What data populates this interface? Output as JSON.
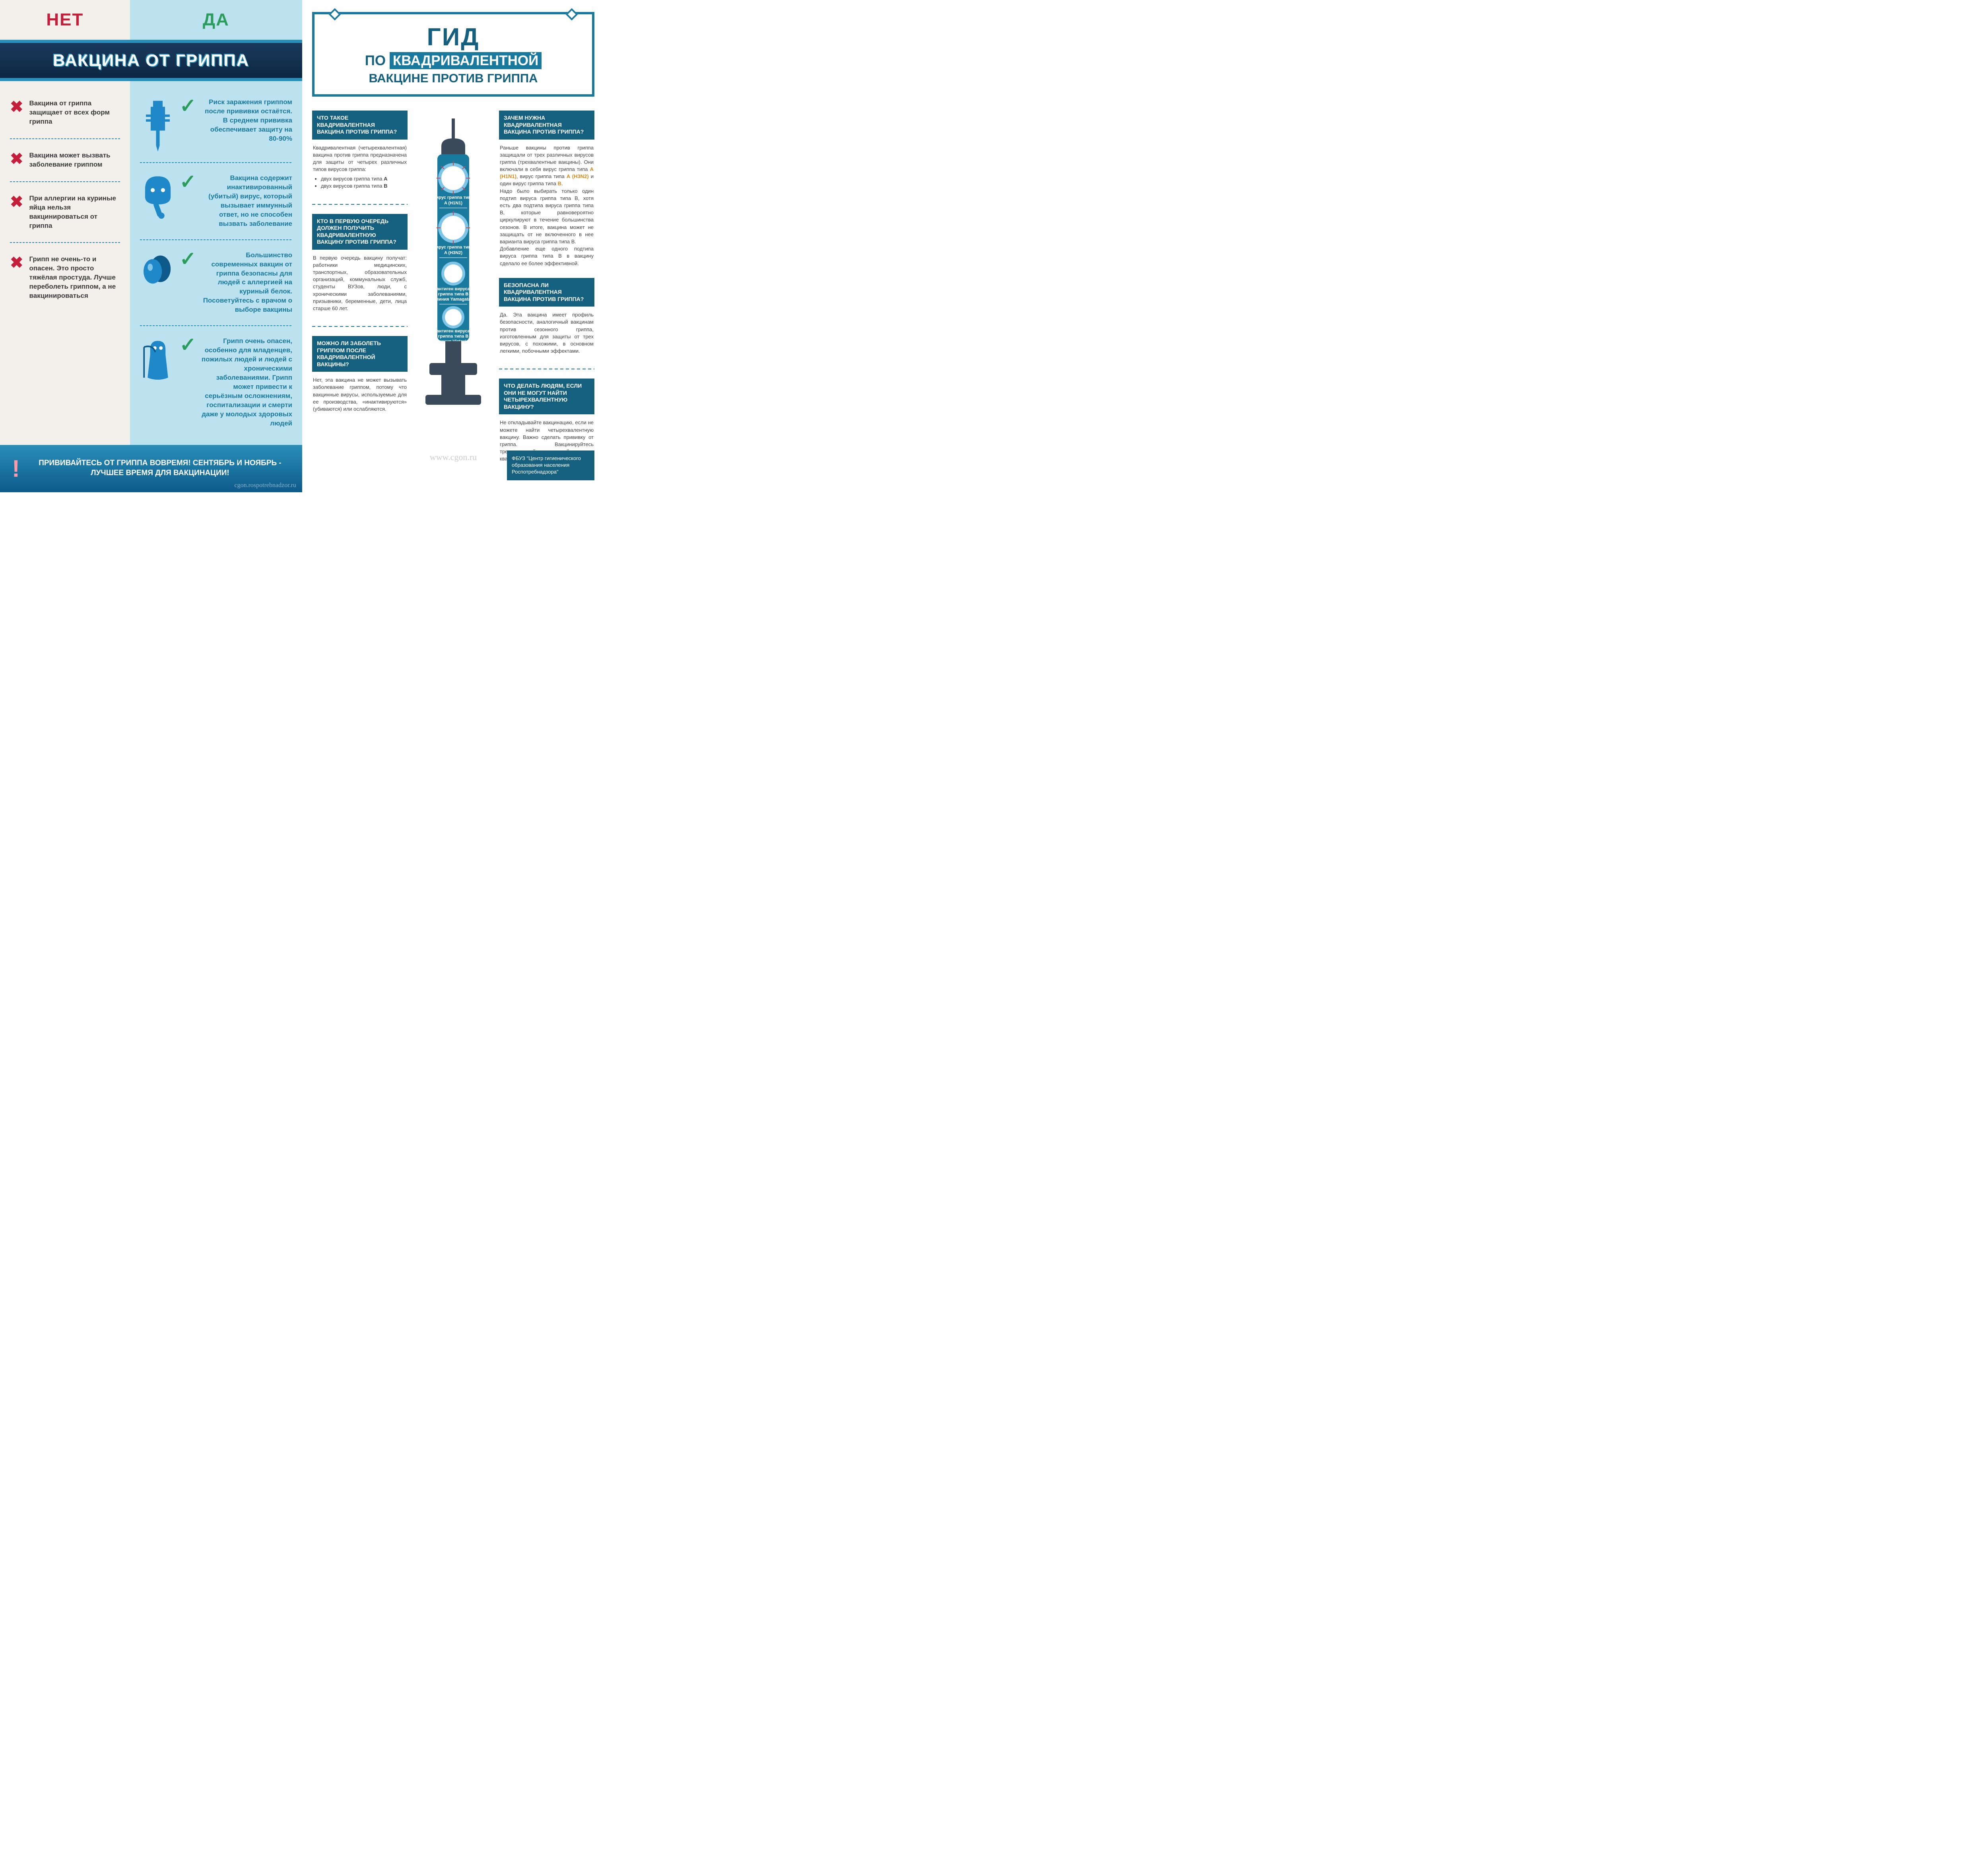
{
  "colors": {
    "red": "#c41e3a",
    "green": "#2a9d5c",
    "teal": "#1a7a9e",
    "darkTeal": "#14607e",
    "navy": "#0d2744",
    "leftNoBg": "#f3f0eb",
    "leftYesBg": "#bce2ef",
    "iconBlue": "#1e88c9",
    "excl": "#d05a6e",
    "orange": "#d68a1a"
  },
  "left": {
    "header": {
      "no": "НЕТ",
      "yes": "ДА"
    },
    "title": "ВАКЦИНА ОТ ГРИППА",
    "myths": [
      {
        "no": "Вакцина от гриппа защищает от всех форм гриппа",
        "yes": "Риск заражения гриппом после прививки остаётся. В среднем прививка обеспечивает защиту на 80-90%",
        "icon": "syringe"
      },
      {
        "no": "Вакцина может вызвать заболевание гриппом",
        "yes": "Вакцина содержит инактивированный (убитый) вирус, который вызывает иммунный ответ, но не способен вызвать заболевание",
        "icon": "face"
      },
      {
        "no": "При аллергии на куриные яйца нельзя вакцинироваться от гриппа",
        "yes": "Большинство современных вакцин от гриппа безопасны для людей с аллергией на куриный белок. Посоветуйтесь с врачом о выборе вакцины",
        "icon": "eggs"
      },
      {
        "no": "Грипп не очень-то и опасен. Это просто тяжёлая простуда. Лучше переболеть гриппом, а не вакцинироваться",
        "yes": "Грипп очень опасен, особенно для младенцев, пожилых людей и людей с хроническими заболеваниями. Грипп может привести к серьёзным осложнениям, госпитализации и смерти даже у молодых здоровых людей",
        "icon": "reaper"
      }
    ],
    "footer": {
      "excl": "!",
      "text": "ПРИВИВАЙТЕСЬ ОТ ГРИППА ВОВРЕМЯ! СЕНТЯБРЬ И НОЯБРЬ - ЛУЧШЕЕ ВРЕМЯ ДЛЯ ВАКЦИНАЦИИ!",
      "watermark": "cgon.rospotrebnadzor.ru"
    }
  },
  "right": {
    "title": {
      "l1": "ГИД",
      "l2a": "ПО ",
      "l2b": "КВАДРИВАЛЕНТНОЙ",
      "l3": "ВАКЦИНЕ ПРОТИВ ГРИППА"
    },
    "colA": [
      {
        "q": "ЧТО ТАКОЕ КВАДРИВАЛЕНТНАЯ ВАКЦИНА ПРОТИВ ГРИППА?",
        "a": "Квадривалентная (четырехвалентная) вакцина против гриппа предназначена для защиты от четырех различных типов вирусов гриппа:",
        "list": [
          "двух вирусов гриппа типа A",
          "двух вирусов гриппа типа B"
        ]
      },
      {
        "q": "КТО В ПЕРВУЮ ОЧЕРЕДЬ ДОЛЖЕН ПОЛУЧИТЬ КВАДРИВАЛЕНТНУЮ ВАКЦИНУ ПРОТИВ ГРИППА?",
        "a": "В первую очередь вакцину получат: работники медицинских, транспортных, образовательных организаций, коммунальных служб, студенты ВУЗов, люди, с хроническими заболеваниями, призывники, беременные, дети, лица старше 60 лет."
      },
      {
        "q": "МОЖНО ЛИ ЗАБОЛЕТЬ ГРИППОМ ПОСЛЕ КВАДРИВАЛЕНТНОЙ ВАКЦИНЫ?",
        "a": "Нет, эта вакцина не может вызывать заболевание гриппом, потому что вакцинные вирусы, используемые для ее производства, «инактивируются» (убиваются) или ослабляются."
      }
    ],
    "colC": [
      {
        "q": "ЗАЧЕМ НУЖНА КВАДРИВАЛЕНТНАЯ ВАКЦИНА ПРОТИВ ГРИППА?",
        "a_html": "Раньше вакцины против гриппа защищали от трех различных вирусов гриппа (трехвалентные вакцины). Они включали в себя вирус гриппа типа <b style='color:#d68a1a'>A (H1N1)</b>, вирус гриппа типа <b style='color:#d68a1a'>A (H3N2)</b> и один вирус гриппа типа <b style='color:#d68a1a'>B</b>.<br>Надо было выбирать только один подтип вируса гриппа типа B, хотя есть два подтипа вируса гриппа типа B, которые равновероятно циркулируют в течение большинства сезонов. В итоге, вакцина может не защищать от не включенного в нее варианта вируса гриппа типа B.<br>Добавление еще одного подтипа вируса гриппа типа B в вакцину сделало ее более эффективной."
      },
      {
        "q": "БЕЗОПАСНА ЛИ КВАДРИВАЛЕНТНАЯ ВАКЦИНА ПРОТИВ ГРИППА?",
        "a": "Да. Эта вакцина имеет профиль безопасности, аналогичный вакцинам против сезонного гриппа, изготовленным для защиты от трех вирусов, с похожими, в основном легкими, побочными эффектами."
      },
      {
        "q": "ЧТО ДЕЛАТЬ ЛЮДЯМ, ЕСЛИ ОНИ НЕ МОГУТ НАЙТИ ЧЕТЫРЕХВАЛЕНТНУЮ ВАКЦИНУ?",
        "a": "Не откладывайте вакцинацию, если не можете найти четырехвалентную вакцину. Важно сделать прививку от гриппа. Вакцинируйтесь трехвалентной вакциной, если квадривалентная вакцина недоступна."
      }
    ],
    "syringe": {
      "labels": [
        "вирус гриппа типа A (H1N1)",
        "вирус гриппа типа A (H3N2)",
        "антиген вируса гриппа типа B (линия Yamagata)",
        "антиген вируса гриппа типа B (линия Victoria)"
      ],
      "bodyColor": "#1a7a9e",
      "plungerColor": "#3a4a5a"
    },
    "watermark": "www.cgon.ru",
    "credit": "ФБУЗ \"Центр гигиенического образования населения Роспотребнадзора\""
  }
}
